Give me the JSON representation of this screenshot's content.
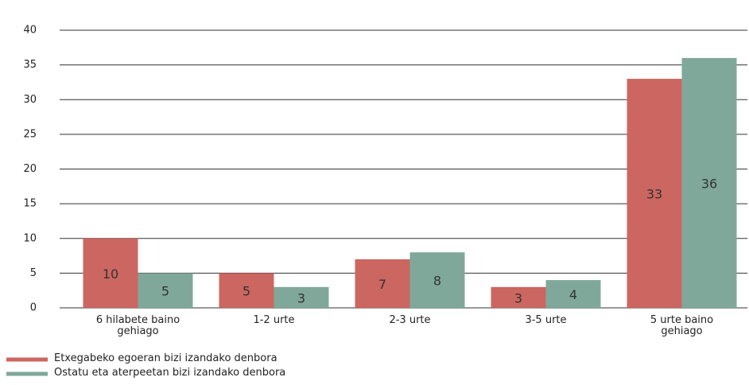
{
  "chart_data": {
    "type": "bar",
    "categories": [
      "6 hilabete baino gehiago",
      "1-2 urte",
      "2-3 urte",
      "3-5 urte",
      "5 urte baino gehiago"
    ],
    "series": [
      {
        "name": "Etxegabeko egoeran bizi izandako denbora",
        "color": "#cc6660",
        "values": [
          10,
          5,
          7,
          3,
          33
        ]
      },
      {
        "name": "Ostatu eta aterpeetan bizi izandako denbora",
        "color": "#7fa89a",
        "values": [
          5,
          3,
          8,
          4,
          36
        ]
      }
    ],
    "ylim": [
      0,
      40
    ],
    "yticks": [
      0,
      5,
      10,
      15,
      20,
      25,
      30,
      35,
      40
    ],
    "grid": true,
    "legend": "bottom-left"
  }
}
